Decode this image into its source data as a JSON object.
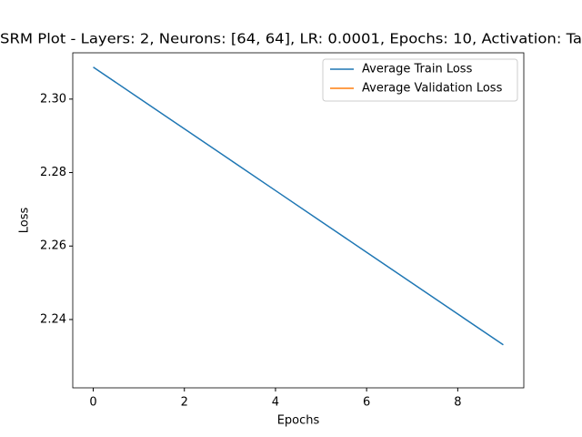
{
  "chart_data": {
    "type": "line",
    "title": "SRM Plot - Layers: 2, Neurons: [64, 64], LR: 0.0001, Epochs: 10, Activation: Ta",
    "xlabel": "Epochs",
    "ylabel": "Loss",
    "x": [
      0,
      1,
      2,
      3,
      4,
      5,
      6,
      7,
      8,
      9
    ],
    "series": [
      {
        "name": "Average Train Loss",
        "color": "#1f77b4",
        "values": [
          2.3087,
          2.3003,
          2.2919,
          2.2835,
          2.2751,
          2.2667,
          2.2583,
          2.2499,
          2.2415,
          2.2331
        ]
      },
      {
        "name": "Average Validation Loss",
        "color": "#ff7f0e",
        "values": [
          null,
          null,
          null,
          null,
          null,
          null,
          null,
          null,
          null,
          null
        ]
      }
    ],
    "xlim": [
      -0.45,
      9.45
    ],
    "xticks": [
      0,
      2,
      4,
      6,
      8
    ],
    "ylim": [
      2.2214,
      2.3126
    ],
    "yticks": [
      2.24,
      2.26,
      2.28,
      {
        "value": 2.3,
        "label": "2.30"
      }
    ],
    "legend": "upper right"
  }
}
